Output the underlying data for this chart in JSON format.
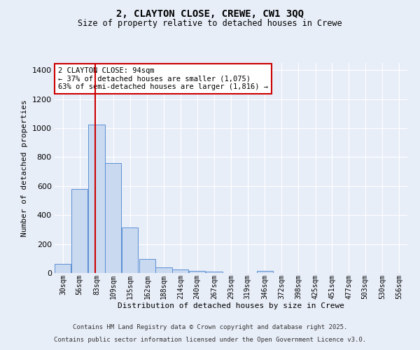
{
  "title_line1": "2, CLAYTON CLOSE, CREWE, CW1 3QQ",
  "title_line2": "Size of property relative to detached houses in Crewe",
  "xlabel": "Distribution of detached houses by size in Crewe",
  "ylabel": "Number of detached properties",
  "bar_color": "#c9d9f0",
  "bar_edge_color": "#5b8fd4",
  "background_color": "#e8eef8",
  "grid_color": "#ffffff",
  "annotation_box_text": "2 CLAYTON CLOSE: 94sqm\n← 37% of detached houses are smaller (1,075)\n63% of semi-detached houses are larger (1,816) →",
  "vline_x": 94,
  "vline_color": "#cc0000",
  "categories": [
    "30sqm",
    "56sqm",
    "83sqm",
    "109sqm",
    "135sqm",
    "162sqm",
    "188sqm",
    "214sqm",
    "240sqm",
    "267sqm",
    "293sqm",
    "319sqm",
    "346sqm",
    "372sqm",
    "398sqm",
    "425sqm",
    "451sqm",
    "477sqm",
    "503sqm",
    "530sqm",
    "556sqm"
  ],
  "bin_edges": [
    30,
    56,
    83,
    109,
    135,
    162,
    188,
    214,
    240,
    267,
    293,
    319,
    346,
    372,
    398,
    425,
    451,
    477,
    503,
    530,
    556
  ],
  "bin_width": 26,
  "values": [
    65,
    580,
    1025,
    760,
    315,
    95,
    40,
    25,
    15,
    10,
    0,
    0,
    15,
    0,
    0,
    0,
    0,
    0,
    0,
    0,
    0
  ],
  "ylim": [
    0,
    1450
  ],
  "yticks": [
    0,
    200,
    400,
    600,
    800,
    1000,
    1200,
    1400
  ],
  "footnote_line1": "Contains HM Land Registry data © Crown copyright and database right 2025.",
  "footnote_line2": "Contains public sector information licensed under the Open Government Licence v3.0."
}
